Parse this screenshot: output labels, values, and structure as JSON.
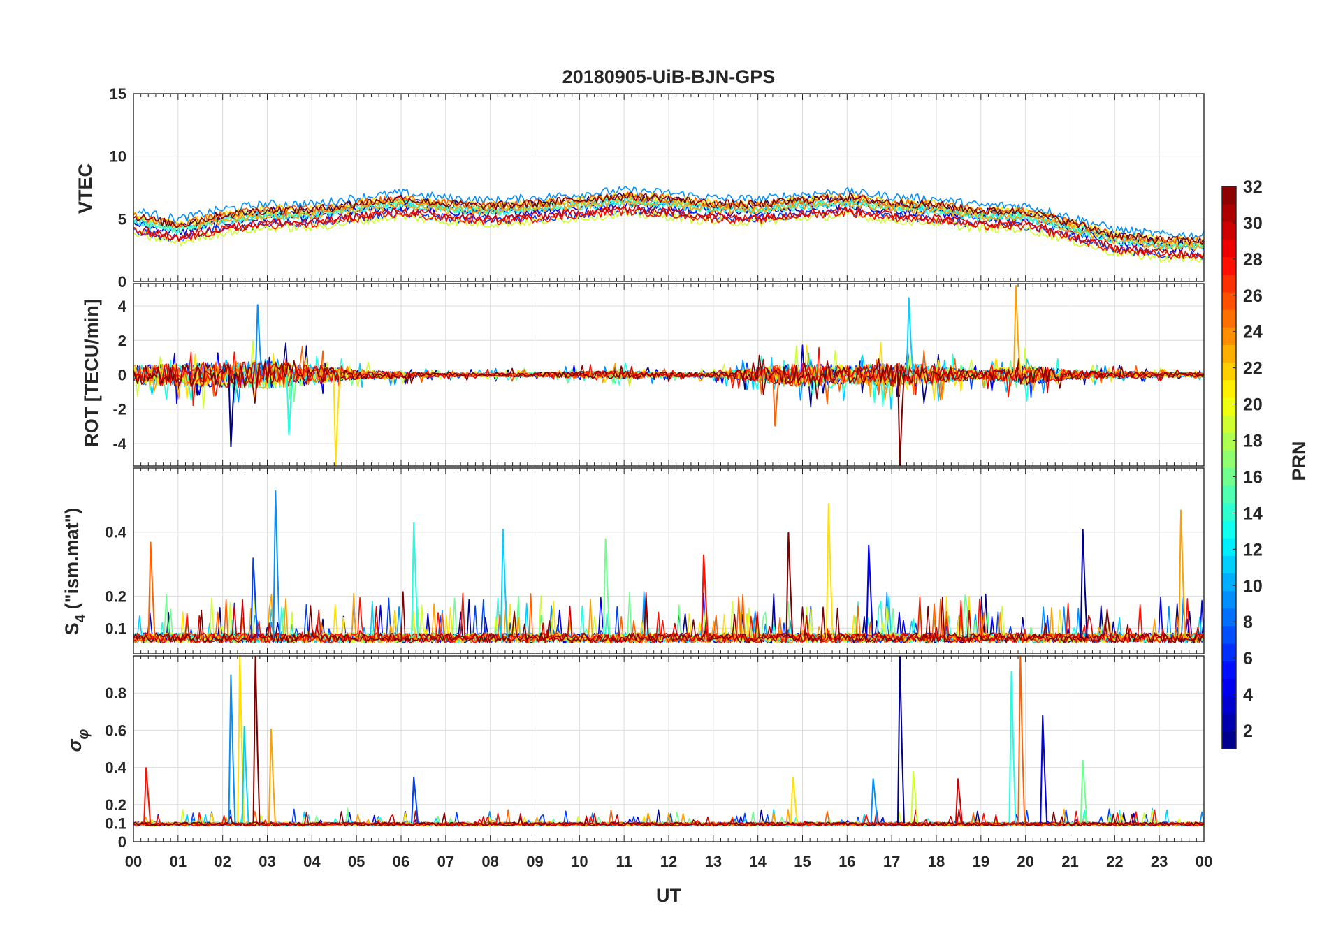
{
  "chart_data": {
    "type": "line",
    "title": "20180905-UiB-BJN-GPS",
    "xlabel": "UT",
    "x_range_hours": [
      0,
      24
    ],
    "x_tick_labels": [
      "00",
      "01",
      "02",
      "03",
      "04",
      "05",
      "06",
      "07",
      "08",
      "09",
      "10",
      "11",
      "12",
      "13",
      "14",
      "15",
      "16",
      "17",
      "18",
      "19",
      "20",
      "21",
      "22",
      "23",
      "00"
    ],
    "panels": [
      {
        "name": "vtec",
        "ylabel": "VTEC",
        "ylim": [
          0,
          15
        ],
        "y_ticks": [
          0,
          5,
          10,
          15
        ],
        "y_tick_labels": [
          "0",
          "5",
          "10",
          "15"
        ],
        "baseline": [
          [
            0,
            4.8
          ],
          [
            1,
            4.1
          ],
          [
            2,
            4.9
          ],
          [
            3,
            5.3
          ],
          [
            4,
            5.3
          ],
          [
            5,
            5.8
          ],
          [
            6,
            6.2
          ],
          [
            7,
            5.8
          ],
          [
            8,
            5.6
          ],
          [
            9,
            5.8
          ],
          [
            10,
            6.1
          ],
          [
            11,
            6.4
          ],
          [
            12,
            6.2
          ],
          [
            13,
            5.8
          ],
          [
            14,
            5.7
          ],
          [
            15,
            6.1
          ],
          [
            16,
            6.3
          ],
          [
            17,
            5.9
          ],
          [
            18,
            5.7
          ],
          [
            19,
            5.2
          ],
          [
            20,
            5.2
          ],
          [
            21,
            4.3
          ],
          [
            22,
            3.3
          ],
          [
            23,
            2.9
          ],
          [
            24,
            2.8
          ]
        ],
        "spread": 1.1,
        "noise": 0.35,
        "spikes": 6
      },
      {
        "name": "rot",
        "ylabel": "ROT [TECU/min]",
        "ylim": [
          -5.3,
          5.3
        ],
        "y_ticks": [
          -4,
          -2,
          0,
          2,
          4
        ],
        "y_tick_labels": [
          "-4",
          "-2",
          "0",
          "2",
          "4"
        ],
        "baseline": [
          [
            0,
            0
          ],
          [
            24,
            0
          ]
        ],
        "activity": [
          [
            0,
            1.0
          ],
          [
            1.5,
            1.3
          ],
          [
            3,
            1.5
          ],
          [
            4,
            1.1
          ],
          [
            5,
            0.5
          ],
          [
            6,
            0.35
          ],
          [
            7,
            0.2
          ],
          [
            9,
            0.25
          ],
          [
            11,
            0.45
          ],
          [
            12,
            0.25
          ],
          [
            13,
            0.25
          ],
          [
            14,
            0.8
          ],
          [
            15,
            1.3
          ],
          [
            16,
            1.0
          ],
          [
            17,
            1.3
          ],
          [
            18,
            1.0
          ],
          [
            19,
            0.45
          ],
          [
            20,
            1.1
          ],
          [
            21,
            0.5
          ],
          [
            22,
            0.35
          ],
          [
            23,
            0.3
          ],
          [
            24,
            0.25
          ]
        ],
        "peaks": [
          {
            "t": 2.8,
            "v": 4.1
          },
          {
            "t": 4.55,
            "v": -5.3
          },
          {
            "t": 17.2,
            "v": -5.3
          },
          {
            "t": 17.4,
            "v": 4.5
          },
          {
            "t": 19.8,
            "v": 5.2
          },
          {
            "t": 2.2,
            "v": -4.2
          },
          {
            "t": 3.5,
            "v": -3.5
          },
          {
            "t": 14.4,
            "v": -3.0
          }
        ]
      },
      {
        "name": "s4",
        "ylabel_main": "S",
        "ylabel_sub": "4",
        "ylabel_rest": " (\"ism.mat\")",
        "ylim": [
          0.02,
          0.6
        ],
        "y_ticks": [
          0.1,
          0.2,
          0.4
        ],
        "y_tick_labels": [
          "0.1",
          "0.2",
          "0.4"
        ],
        "baseline": [
          [
            0,
            0.08
          ],
          [
            24,
            0.08
          ]
        ],
        "noise": 0.03,
        "peaks": [
          {
            "t": 3.2,
            "v": 0.53
          },
          {
            "t": 15.6,
            "v": 0.49
          },
          {
            "t": 14.7,
            "v": 0.4
          },
          {
            "t": 8.3,
            "v": 0.41
          },
          {
            "t": 23.5,
            "v": 0.47
          },
          {
            "t": 21.3,
            "v": 0.41
          },
          {
            "t": 6.3,
            "v": 0.43
          },
          {
            "t": 0.4,
            "v": 0.37
          },
          {
            "t": 16.5,
            "v": 0.36
          },
          {
            "t": 10.6,
            "v": 0.38
          },
          {
            "t": 12.8,
            "v": 0.33
          },
          {
            "t": 2.7,
            "v": 0.32
          }
        ]
      },
      {
        "name": "sigma_phi",
        "ylabel_main": "σ",
        "ylabel_sub": "φ",
        "ylim": [
          0,
          1
        ],
        "y_ticks": [
          0,
          0.1,
          0.2,
          0.4,
          0.6,
          0.8
        ],
        "y_tick_labels": [
          "0",
          "0.1",
          "0.2",
          "0.4",
          "0.6",
          "0.8"
        ],
        "baseline": [
          [
            0,
            0.1
          ],
          [
            24,
            0.1
          ]
        ],
        "noise": 0.02,
        "peaks": [
          {
            "t": 2.2,
            "v": 0.9
          },
          {
            "t": 2.4,
            "v": 1.0
          },
          {
            "t": 2.75,
            "v": 1.0
          },
          {
            "t": 2.5,
            "v": 0.62
          },
          {
            "t": 3.1,
            "v": 0.61
          },
          {
            "t": 17.2,
            "v": 1.0
          },
          {
            "t": 19.7,
            "v": 0.92
          },
          {
            "t": 19.9,
            "v": 1.0
          },
          {
            "t": 20.4,
            "v": 0.68
          },
          {
            "t": 21.3,
            "v": 0.44
          },
          {
            "t": 0.3,
            "v": 0.4
          },
          {
            "t": 6.3,
            "v": 0.35
          },
          {
            "t": 17.5,
            "v": 0.38
          },
          {
            "t": 18.5,
            "v": 0.34
          },
          {
            "t": 16.6,
            "v": 0.34
          },
          {
            "t": 14.8,
            "v": 0.35
          }
        ]
      }
    ],
    "colorbar": {
      "label": "PRN",
      "range": [
        1,
        32
      ],
      "tick_values": [
        2,
        4,
        6,
        8,
        10,
        12,
        14,
        16,
        18,
        20,
        22,
        24,
        26,
        28,
        30,
        32
      ],
      "tick_labels": [
        "2",
        "4",
        "6",
        "8",
        "10",
        "12",
        "14",
        "16",
        "18",
        "20",
        "22",
        "24",
        "26",
        "28",
        "30",
        "32"
      ],
      "colormap": "jet"
    },
    "series_prns": [
      2,
      5,
      8,
      10,
      12,
      14,
      17,
      20,
      22,
      24,
      26,
      28,
      30,
      32
    ],
    "line_colors": [
      "#00008f",
      "#0000ef",
      "#0040ff",
      "#0090ff",
      "#00d0ff",
      "#20ffdf",
      "#70ff8f",
      "#cfff30",
      "#ffe000",
      "#ffa000",
      "#ff6000",
      "#ff1000",
      "#cf0000",
      "#800000"
    ]
  }
}
